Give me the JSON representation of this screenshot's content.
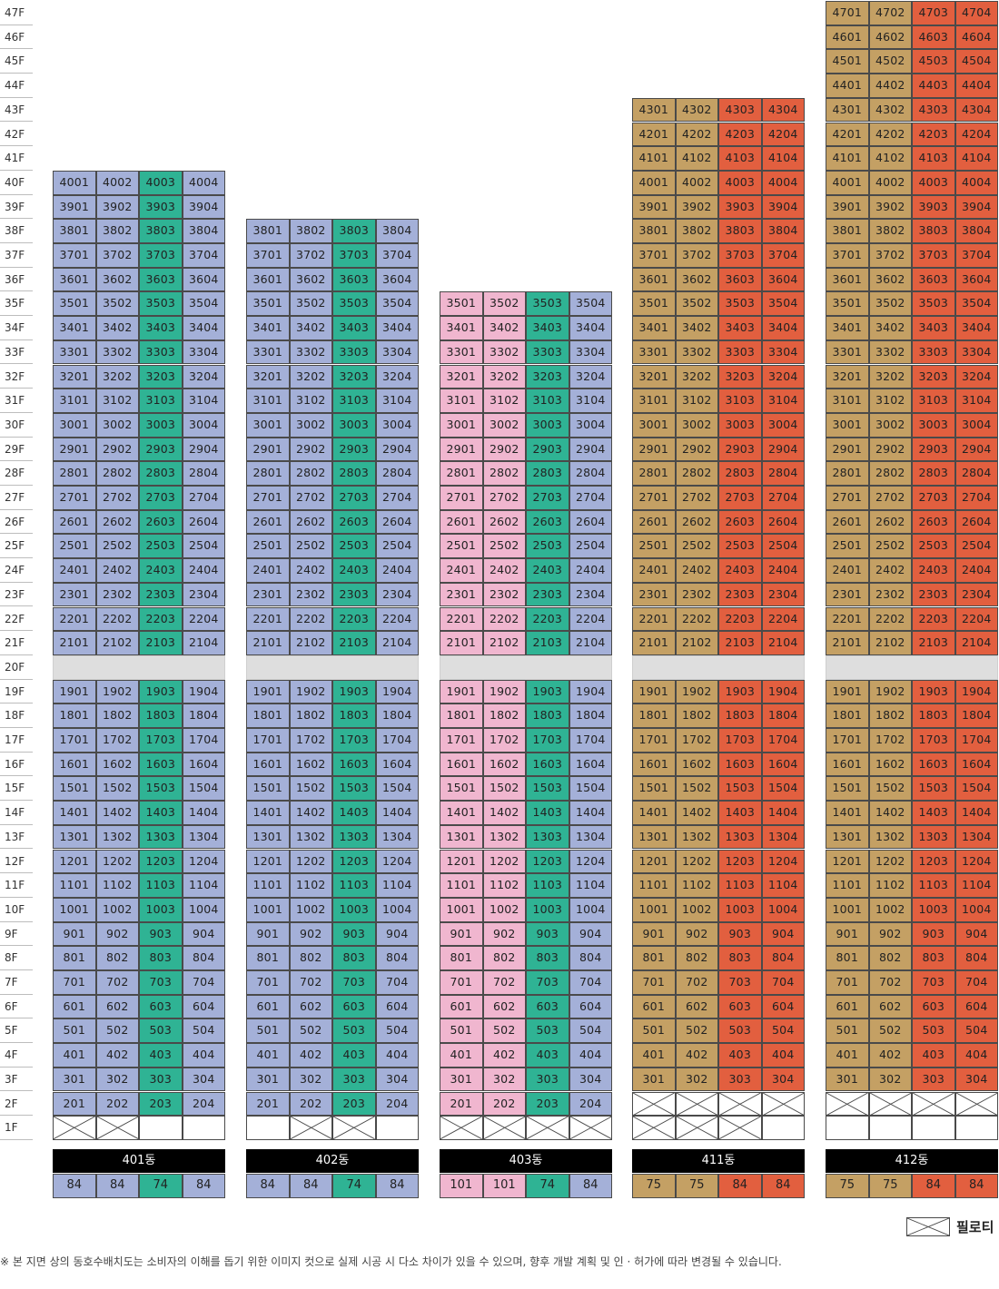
{
  "floors": [
    "47F",
    "46F",
    "45F",
    "44F",
    "43F",
    "42F",
    "41F",
    "40F",
    "39F",
    "38F",
    "37F",
    "36F",
    "35F",
    "34F",
    "33F",
    "32F",
    "31F",
    "30F",
    "29F",
    "28F",
    "27F",
    "26F",
    "25F",
    "24F",
    "23F",
    "22F",
    "21F",
    "20F",
    "19F",
    "18F",
    "17F",
    "16F",
    "15F",
    "14F",
    "13F",
    "12F",
    "11F",
    "10F",
    "9F",
    "8F",
    "7F",
    "6F",
    "5F",
    "4F",
    "3F",
    "2F",
    "1F"
  ],
  "colors": {
    "blue": "#a4b0d8",
    "green": "#2fb394",
    "pink": "#f0b6cf",
    "gold": "#c4a064",
    "orange": "#e25f3f",
    "refuge": "#dedede"
  },
  "buildings": [
    {
      "name": "401동",
      "top_floor": 40,
      "refuge_floor": 20,
      "first_unit_floor": 2,
      "line_colors": [
        "blue",
        "blue",
        "green",
        "blue"
      ],
      "pilotis": {
        "1": [
          1,
          2
        ],
        "2": []
      },
      "types": [
        "84",
        "84",
        "74",
        "84"
      ]
    },
    {
      "name": "402동",
      "top_floor": 38,
      "refuge_floor": 20,
      "first_unit_floor": 2,
      "line_colors": [
        "blue",
        "blue",
        "green",
        "blue"
      ],
      "pilotis": {
        "1": [
          2,
          3
        ],
        "2": []
      },
      "types": [
        "84",
        "84",
        "74",
        "84"
      ]
    },
    {
      "name": "403동",
      "top_floor": 35,
      "refuge_floor": 20,
      "first_unit_floor": 2,
      "line_colors": [
        "pink",
        "pink",
        "green",
        "blue"
      ],
      "pilotis": {
        "1": [
          1,
          2,
          3,
          4
        ],
        "2": []
      },
      "types": [
        "101",
        "101",
        "74",
        "84"
      ]
    },
    {
      "name": "411동",
      "top_floor": 43,
      "refuge_floor": 20,
      "first_unit_floor": 3,
      "line_colors": [
        "gold",
        "gold",
        "orange",
        "orange"
      ],
      "pilotis": {
        "1": [
          1,
          2,
          3
        ],
        "2": [
          1,
          2,
          3,
          4
        ]
      },
      "types": [
        "75",
        "75",
        "84",
        "84"
      ]
    },
    {
      "name": "412동",
      "top_floor": 47,
      "refuge_floor": 20,
      "first_unit_floor": 3,
      "line_colors": [
        "gold",
        "gold",
        "orange",
        "orange"
      ],
      "pilotis": {
        "1": [],
        "2": [
          1,
          2,
          3,
          4
        ]
      },
      "types": [
        "75",
        "75",
        "84",
        "84"
      ]
    }
  ],
  "legend": {
    "label": "필로티",
    "icon": "pilotis-cross-icon"
  },
  "footnote": "※ 본 지면 상의 동호수배치도는 소비자의 이해를 돕기 위한 이미지 컷으로 실제 시공 시 다소 차이가 있을 수 있으며, 향후 개발 계획 및 인 · 허가에 따라 변경될 수 있습니다."
}
